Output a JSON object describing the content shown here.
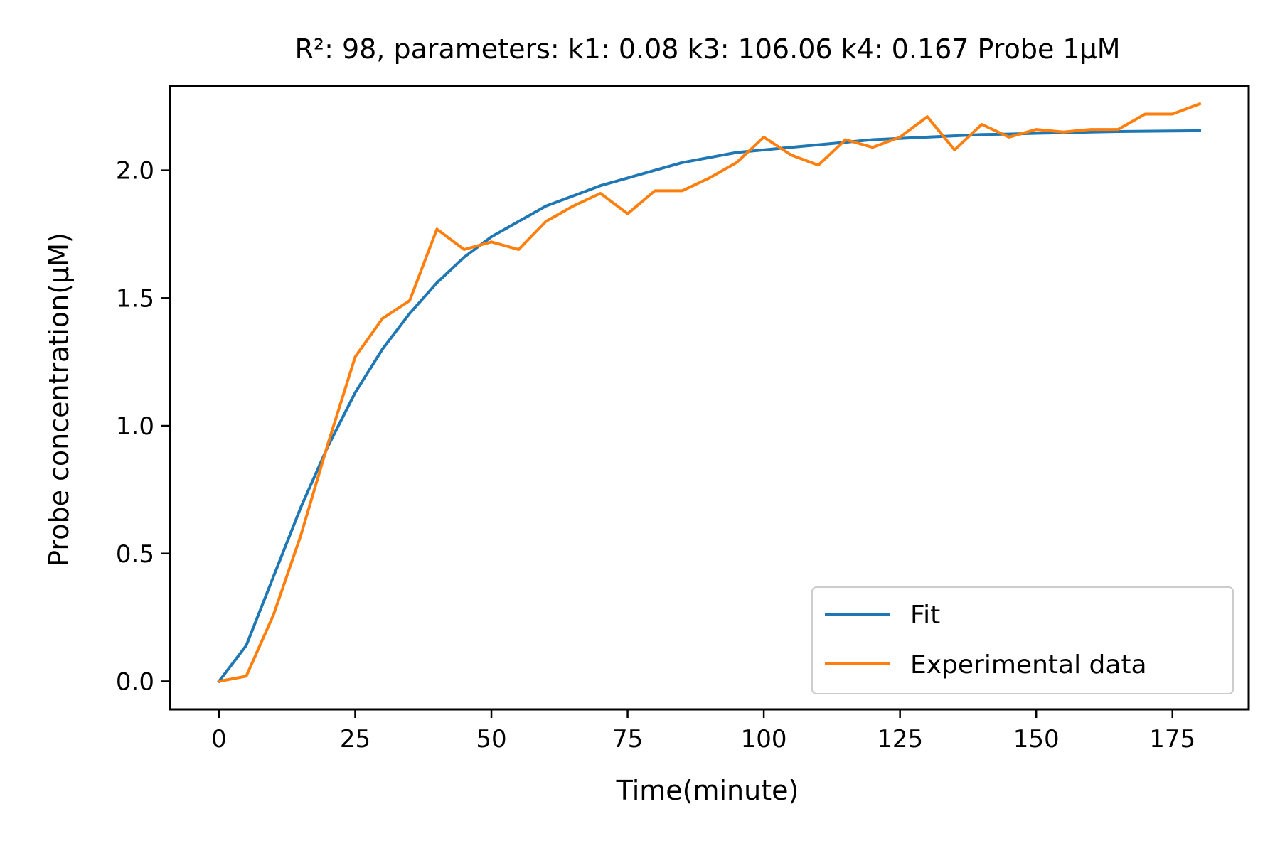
{
  "chart_data": {
    "type": "line",
    "title": "R²: 98, parameters: k1: 0.08 k3: 106.06 k4: 0.167 Probe 1μM",
    "xlabel": "Time(minute)",
    "ylabel": "Probe concentration(μM)",
    "xlim": [
      -9,
      189
    ],
    "ylim": [
      -0.11,
      2.33
    ],
    "xticks": [
      0,
      25,
      50,
      75,
      100,
      125,
      150,
      175
    ],
    "yticks": [
      0.0,
      0.5,
      1.0,
      1.5,
      2.0
    ],
    "xtick_labels": [
      "0",
      "25",
      "50",
      "75",
      "100",
      "125",
      "150",
      "175"
    ],
    "ytick_labels": [
      "0.0",
      "0.5",
      "1.0",
      "1.5",
      "2.0"
    ],
    "grid": false,
    "legend_position": "lower-right",
    "x": [
      0,
      5,
      10,
      15,
      20,
      25,
      30,
      35,
      40,
      45,
      50,
      55,
      60,
      65,
      70,
      75,
      80,
      85,
      90,
      95,
      100,
      105,
      110,
      115,
      120,
      125,
      130,
      135,
      140,
      145,
      150,
      155,
      160,
      165,
      170,
      175,
      180
    ],
    "series": [
      {
        "name": "Fit",
        "color": "#1f77b4",
        "values": [
          0.0,
          0.14,
          0.41,
          0.68,
          0.92,
          1.13,
          1.3,
          1.44,
          1.56,
          1.66,
          1.74,
          1.8,
          1.86,
          1.9,
          1.94,
          1.97,
          2.0,
          2.03,
          2.05,
          2.07,
          2.08,
          2.09,
          2.1,
          2.11,
          2.12,
          2.125,
          2.13,
          2.135,
          2.14,
          2.142,
          2.145,
          2.147,
          2.15,
          2.152,
          2.153,
          2.154,
          2.155
        ]
      },
      {
        "name": "Experimental data",
        "color": "#ff7f0e",
        "values": [
          0.0,
          0.02,
          0.26,
          0.57,
          0.93,
          1.27,
          1.42,
          1.49,
          1.77,
          1.69,
          1.72,
          1.69,
          1.8,
          1.86,
          1.91,
          1.83,
          1.92,
          1.92,
          1.97,
          2.03,
          2.13,
          2.06,
          2.02,
          2.12,
          2.09,
          2.13,
          2.21,
          2.08,
          2.18,
          2.13,
          2.16,
          2.15,
          2.16,
          2.16,
          2.22,
          2.22,
          2.26
        ]
      }
    ]
  }
}
